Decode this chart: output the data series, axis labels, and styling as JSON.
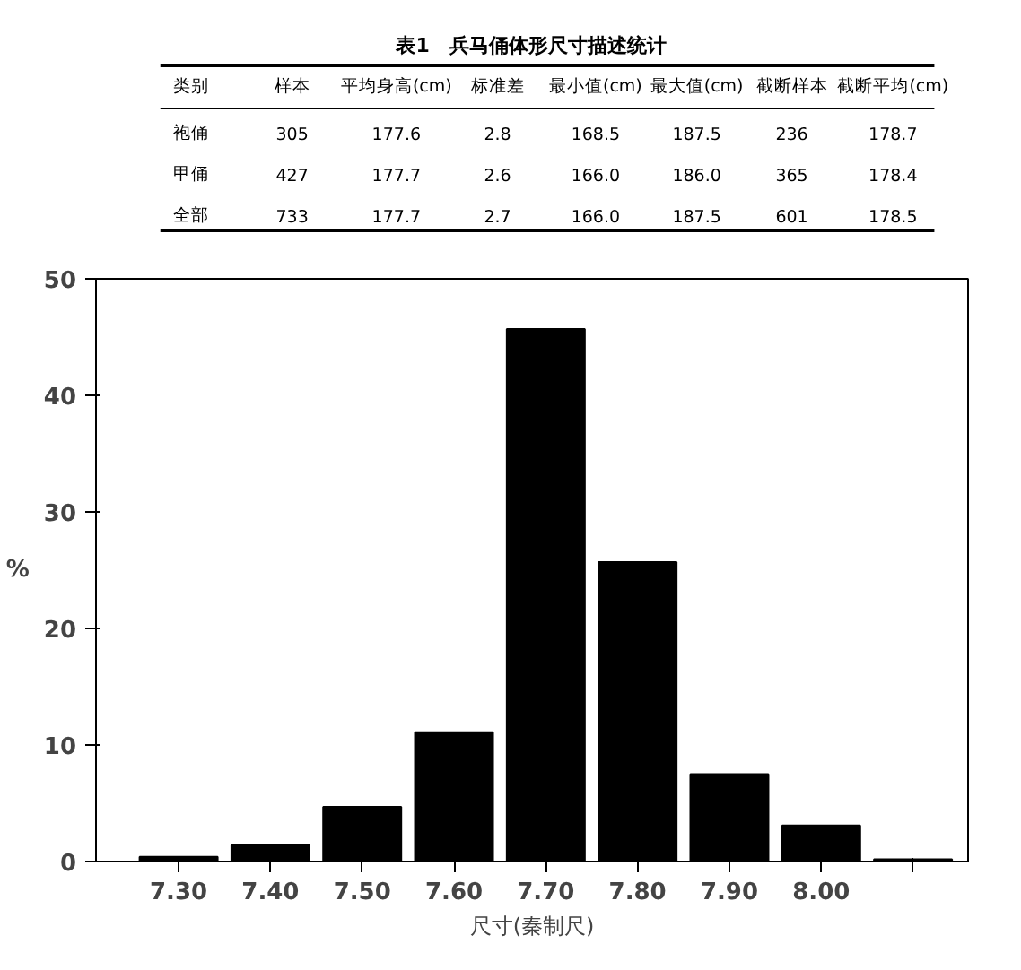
{
  "chart_data": [
    {
      "type": "other",
      "title": "表1　兵马俑体形尺寸描述统计",
      "annotations": [
        "类别",
        "样本",
        "平均身高(cm)",
        "标准差",
        "最小值(cm)",
        "最大值(cm)",
        "截断样本",
        "截断平均(cm)",
        "袍俑",
        "305",
        "177.6",
        "2.8",
        "168.5",
        "187.5",
        "236",
        "178.7",
        "甲俑",
        "427",
        "177.7",
        "2.6",
        "166.0",
        "186.0",
        "365",
        "178.4",
        "全部",
        "733",
        "177.7",
        "2.7",
        "166.0",
        "187.5",
        "601",
        "178.5"
      ]
    },
    {
      "type": "bar",
      "ylabel": "%",
      "xlabel": "尺寸(秦制尺)",
      "categories": [
        "7.30",
        "7.40",
        "7.50",
        "7.60",
        "7.70",
        "7.80",
        "7.90",
        "8.00",
        null
      ],
      "color": "#000000",
      "values": [
        0.4,
        1.4,
        4.7,
        11.1,
        45.7,
        25.7,
        7.5,
        3.1,
        0.2
      ],
      "ylim": [
        0,
        50
      ],
      "yticks": [
        0,
        10,
        20,
        30,
        40,
        50
      ],
      "grid": false
    }
  ]
}
